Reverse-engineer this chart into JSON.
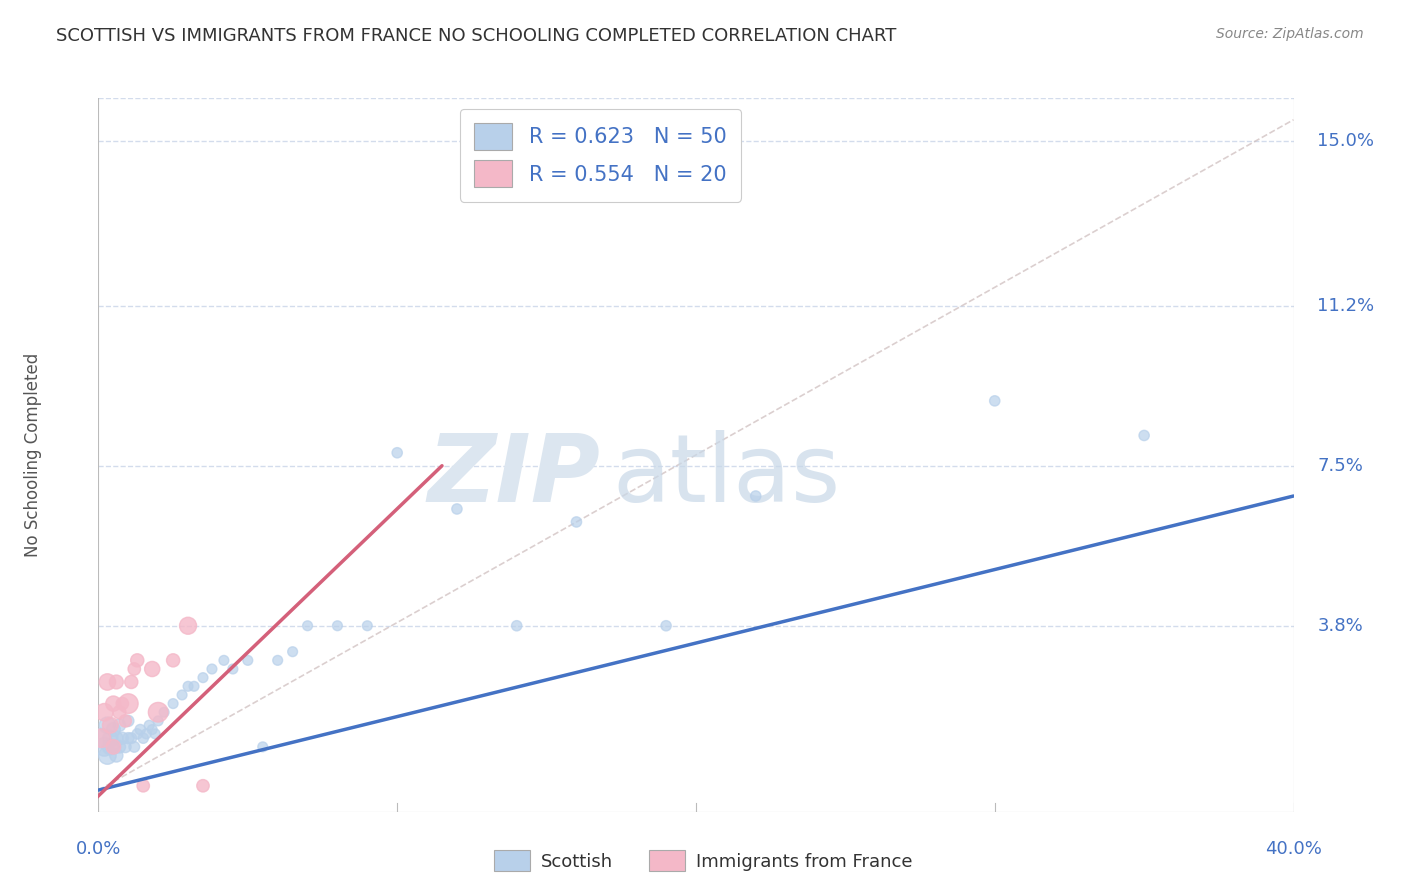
{
  "title": "SCOTTISH VS IMMIGRANTS FROM FRANCE NO SCHOOLING COMPLETED CORRELATION CHART",
  "source": "Source: ZipAtlas.com",
  "ylabel": "No Schooling Completed",
  "ytick_vals": [
    0.0,
    0.038,
    0.075,
    0.112,
    0.15
  ],
  "ytick_labels": [
    "",
    "3.8%",
    "7.5%",
    "11.2%",
    "15.0%"
  ],
  "xlim": [
    0.0,
    0.4
  ],
  "ylim": [
    -0.005,
    0.16
  ],
  "watermark_zip": "ZIP",
  "watermark_atlas": "atlas",
  "legend_text1": "R = 0.623   N = 50",
  "legend_text2": "R = 0.554   N = 20",
  "blue_scatter_color": "#b8d0ea",
  "blue_line_color": "#4472c4",
  "pink_scatter_color": "#f4b8c8",
  "pink_line_color": "#d4607a",
  "legend_label1": "Scottish",
  "legend_label2": "Immigrants from France",
  "scottish_x": [
    0.001,
    0.002,
    0.003,
    0.003,
    0.004,
    0.004,
    0.005,
    0.005,
    0.006,
    0.006,
    0.007,
    0.007,
    0.008,
    0.009,
    0.01,
    0.01,
    0.011,
    0.012,
    0.013,
    0.014,
    0.015,
    0.016,
    0.017,
    0.018,
    0.019,
    0.02,
    0.022,
    0.025,
    0.028,
    0.03,
    0.032,
    0.035,
    0.038,
    0.042,
    0.045,
    0.05,
    0.055,
    0.06,
    0.065,
    0.07,
    0.08,
    0.09,
    0.1,
    0.12,
    0.14,
    0.16,
    0.19,
    0.22,
    0.3,
    0.35
  ],
  "scottish_y": [
    0.012,
    0.01,
    0.008,
    0.015,
    0.01,
    0.012,
    0.01,
    0.014,
    0.008,
    0.012,
    0.01,
    0.015,
    0.012,
    0.01,
    0.012,
    0.016,
    0.012,
    0.01,
    0.013,
    0.014,
    0.012,
    0.013,
    0.015,
    0.014,
    0.013,
    0.016,
    0.018,
    0.02,
    0.022,
    0.024,
    0.024,
    0.026,
    0.028,
    0.03,
    0.028,
    0.03,
    0.01,
    0.03,
    0.032,
    0.038,
    0.038,
    0.038,
    0.078,
    0.065,
    0.038,
    0.062,
    0.038,
    0.068,
    0.09,
    0.082
  ],
  "scottish_sizes": [
    200,
    180,
    160,
    140,
    130,
    120,
    110,
    100,
    90,
    90,
    80,
    80,
    75,
    70,
    65,
    65,
    60,
    60,
    55,
    55,
    55,
    50,
    50,
    50,
    50,
    50,
    50,
    50,
    50,
    50,
    50,
    50,
    50,
    50,
    50,
    50,
    50,
    50,
    50,
    50,
    50,
    50,
    55,
    55,
    55,
    55,
    55,
    55,
    55,
    55
  ],
  "france_x": [
    0.001,
    0.002,
    0.003,
    0.004,
    0.005,
    0.005,
    0.006,
    0.007,
    0.008,
    0.009,
    0.01,
    0.011,
    0.012,
    0.013,
    0.015,
    0.018,
    0.02,
    0.025,
    0.03,
    0.035
  ],
  "france_y": [
    0.012,
    0.018,
    0.025,
    0.015,
    0.02,
    0.01,
    0.025,
    0.018,
    0.02,
    0.016,
    0.02,
    0.025,
    0.028,
    0.03,
    0.001,
    0.028,
    0.018,
    0.03,
    0.038,
    0.001
  ],
  "france_sizes": [
    180,
    160,
    140,
    130,
    120,
    110,
    100,
    90,
    80,
    80,
    200,
    90,
    80,
    90,
    80,
    120,
    200,
    90,
    150,
    80
  ],
  "blue_trend_x": [
    0.0,
    0.4
  ],
  "blue_trend_y": [
    0.0,
    0.068
  ],
  "pink_trend_x": [
    -0.001,
    0.115
  ],
  "pink_trend_y": [
    -0.002,
    0.075
  ],
  "ref_line_x": [
    0.0,
    0.4
  ],
  "ref_line_y": [
    0.0,
    0.155
  ],
  "grid_color": "#c8d4e8",
  "grid_style": "--",
  "background_color": "#ffffff",
  "title_color": "#333333",
  "right_label_color": "#4472c4",
  "watermark_color": "#dce6f0"
}
